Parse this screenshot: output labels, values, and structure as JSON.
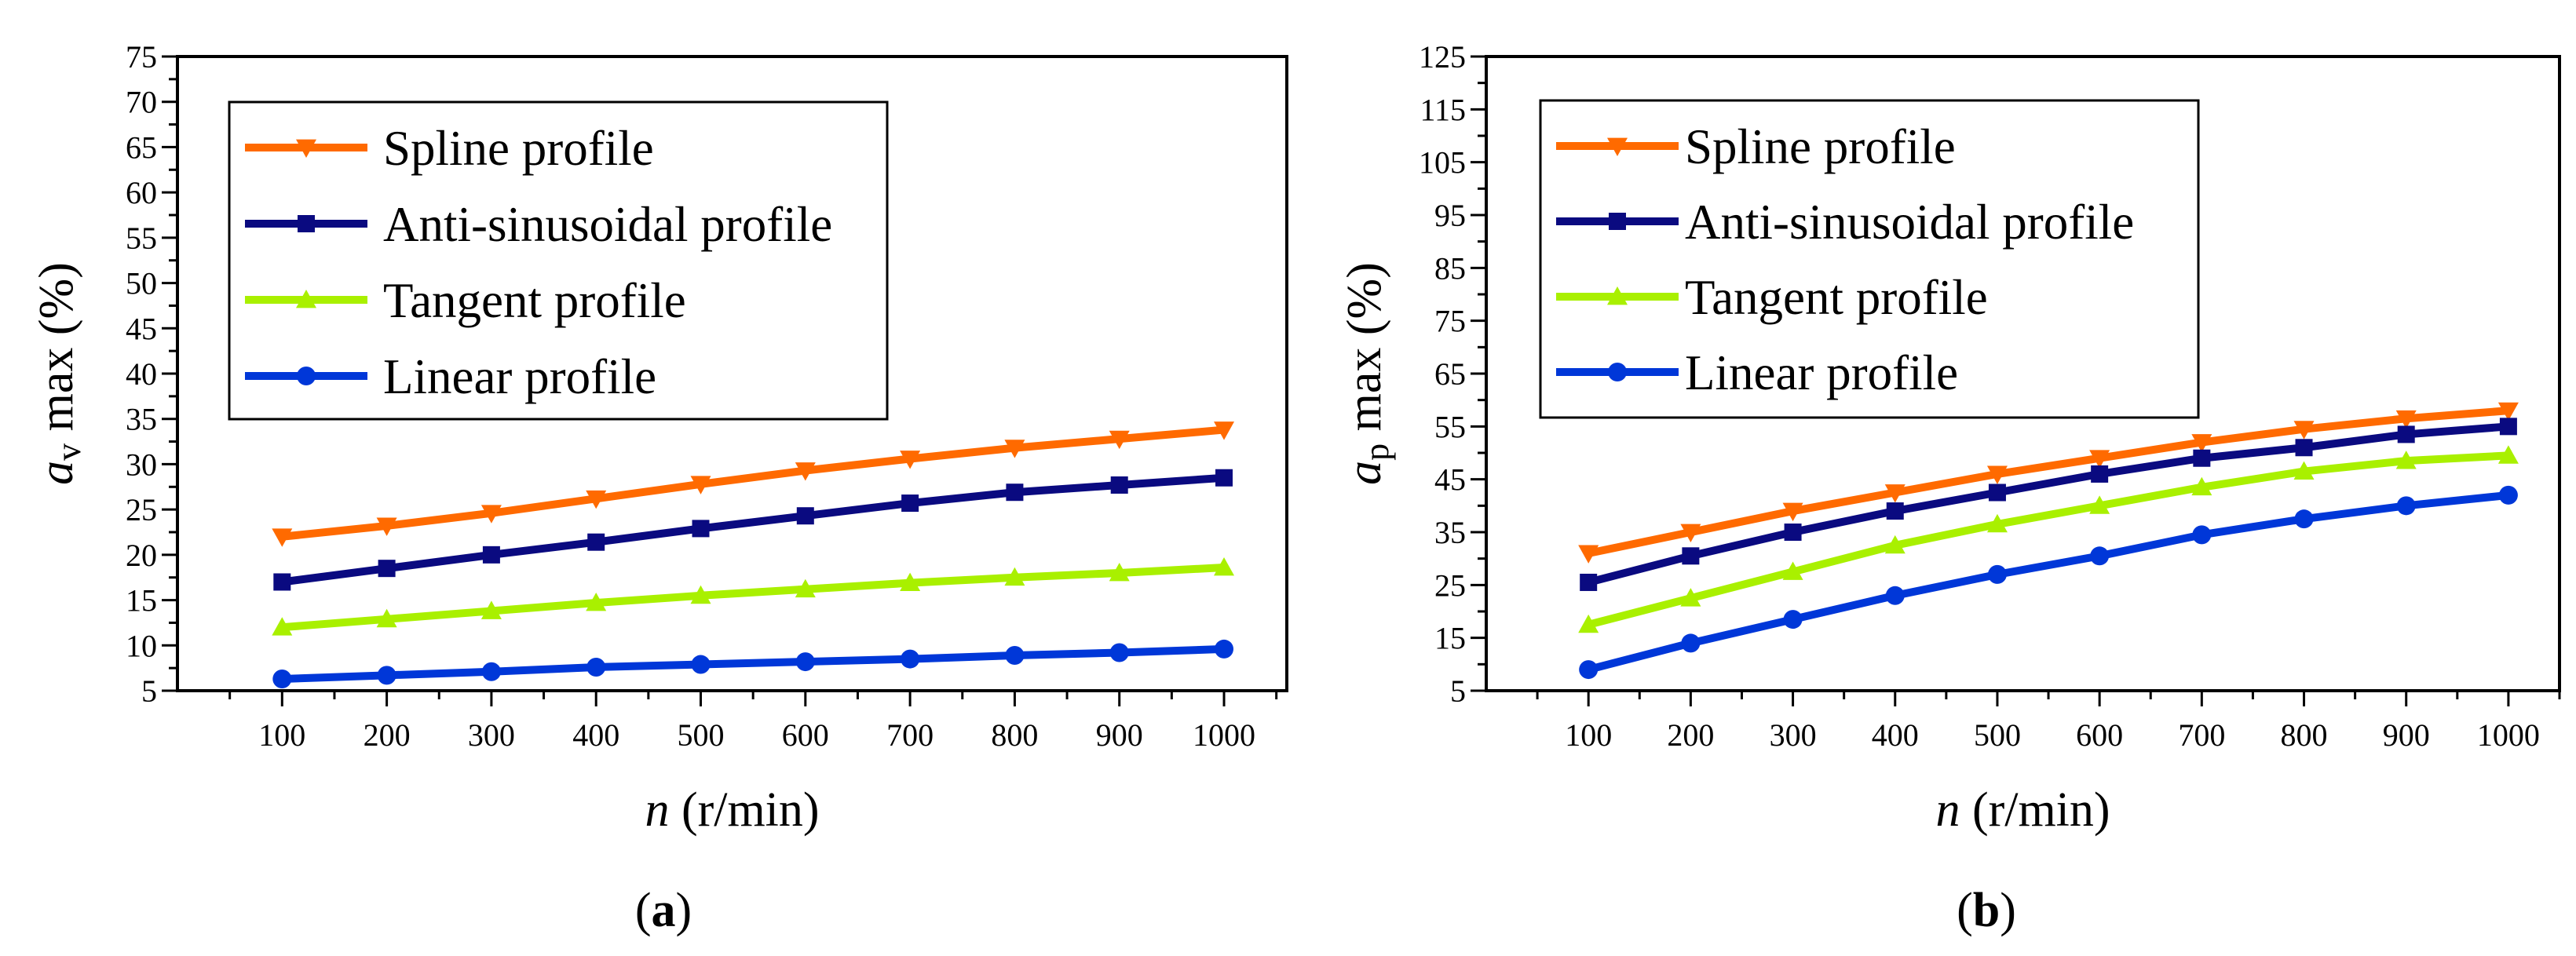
{
  "colors": {
    "spline": "#ff6a00",
    "anti_sinusoidal": "#0a0a80",
    "tangent": "#a9f000",
    "linear": "#0037d8",
    "axis": "#000000"
  },
  "legend_labels": [
    "Spline profile",
    "Anti-sinusoidal profile",
    "Tangent profile",
    "Linear profile"
  ],
  "chart_data": [
    {
      "type": "line",
      "caption": "(a)",
      "caption_letter": "a",
      "xlabel_var": "n",
      "xlabel_unit": " (r/min)",
      "ylabel_var": "a",
      "ylabel_sub": "v",
      "ylabel_rest": " max (%)",
      "x": [
        100,
        200,
        300,
        400,
        500,
        600,
        700,
        800,
        900,
        1000
      ],
      "xticks": [
        100,
        200,
        300,
        400,
        500,
        600,
        700,
        800,
        900,
        1000
      ],
      "yticks": [
        5,
        10,
        15,
        20,
        25,
        30,
        35,
        40,
        45,
        50,
        55,
        60,
        65,
        70,
        75
      ],
      "xlim": [
        0,
        1060
      ],
      "ylim": [
        5,
        75
      ],
      "legend_position": "top-left",
      "series": [
        {
          "name": "Spline profile",
          "marker": "triangle-down",
          "values": [
            22.0,
            23.2,
            24.6,
            26.2,
            27.8,
            29.3,
            30.6,
            31.8,
            32.8,
            33.8
          ]
        },
        {
          "name": "Anti-sinusoidal profile",
          "marker": "square",
          "values": [
            17.0,
            18.5,
            20.0,
            21.4,
            22.9,
            24.3,
            25.7,
            26.9,
            27.7,
            28.5
          ]
        },
        {
          "name": "Tangent profile",
          "marker": "triangle-up",
          "values": [
            12.0,
            12.9,
            13.8,
            14.7,
            15.5,
            16.2,
            16.9,
            17.5,
            18.0,
            18.6
          ]
        },
        {
          "name": "Linear profile",
          "marker": "circle",
          "values": [
            6.3,
            6.7,
            7.1,
            7.6,
            7.9,
            8.2,
            8.5,
            8.9,
            9.2,
            9.6
          ]
        }
      ]
    },
    {
      "type": "line",
      "caption": "(b)",
      "caption_letter": "b",
      "xlabel_var": "n",
      "xlabel_unit": " (r/min)",
      "ylabel_var": "a",
      "ylabel_sub": "p",
      "ylabel_rest": " max (%)",
      "x": [
        100,
        200,
        300,
        400,
        500,
        600,
        700,
        800,
        900,
        1000
      ],
      "xticks": [
        100,
        200,
        300,
        400,
        500,
        600,
        700,
        800,
        900,
        1000
      ],
      "yticks": [
        5,
        15,
        25,
        35,
        45,
        55,
        65,
        75,
        85,
        95,
        105,
        115,
        125
      ],
      "xlim": [
        0,
        1050
      ],
      "ylim": [
        5,
        125
      ],
      "legend_position": "top-left",
      "series": [
        {
          "name": "Spline profile",
          "marker": "triangle-down",
          "values": [
            31.0,
            35.0,
            39.0,
            42.5,
            46.0,
            49.0,
            52.0,
            54.5,
            56.5,
            58.0
          ]
        },
        {
          "name": "Anti-sinusoidal profile",
          "marker": "square",
          "values": [
            25.5,
            30.5,
            35.0,
            39.0,
            42.5,
            46.0,
            49.0,
            51.0,
            53.5,
            55.0
          ]
        },
        {
          "name": "Tangent profile",
          "marker": "triangle-up",
          "values": [
            17.5,
            22.5,
            27.5,
            32.5,
            36.5,
            40.0,
            43.5,
            46.5,
            48.5,
            49.5
          ]
        },
        {
          "name": "Linear profile",
          "marker": "circle",
          "values": [
            9.0,
            14.0,
            18.5,
            23.0,
            27.0,
            30.5,
            34.5,
            37.5,
            40.0,
            42.0
          ]
        }
      ]
    }
  ]
}
